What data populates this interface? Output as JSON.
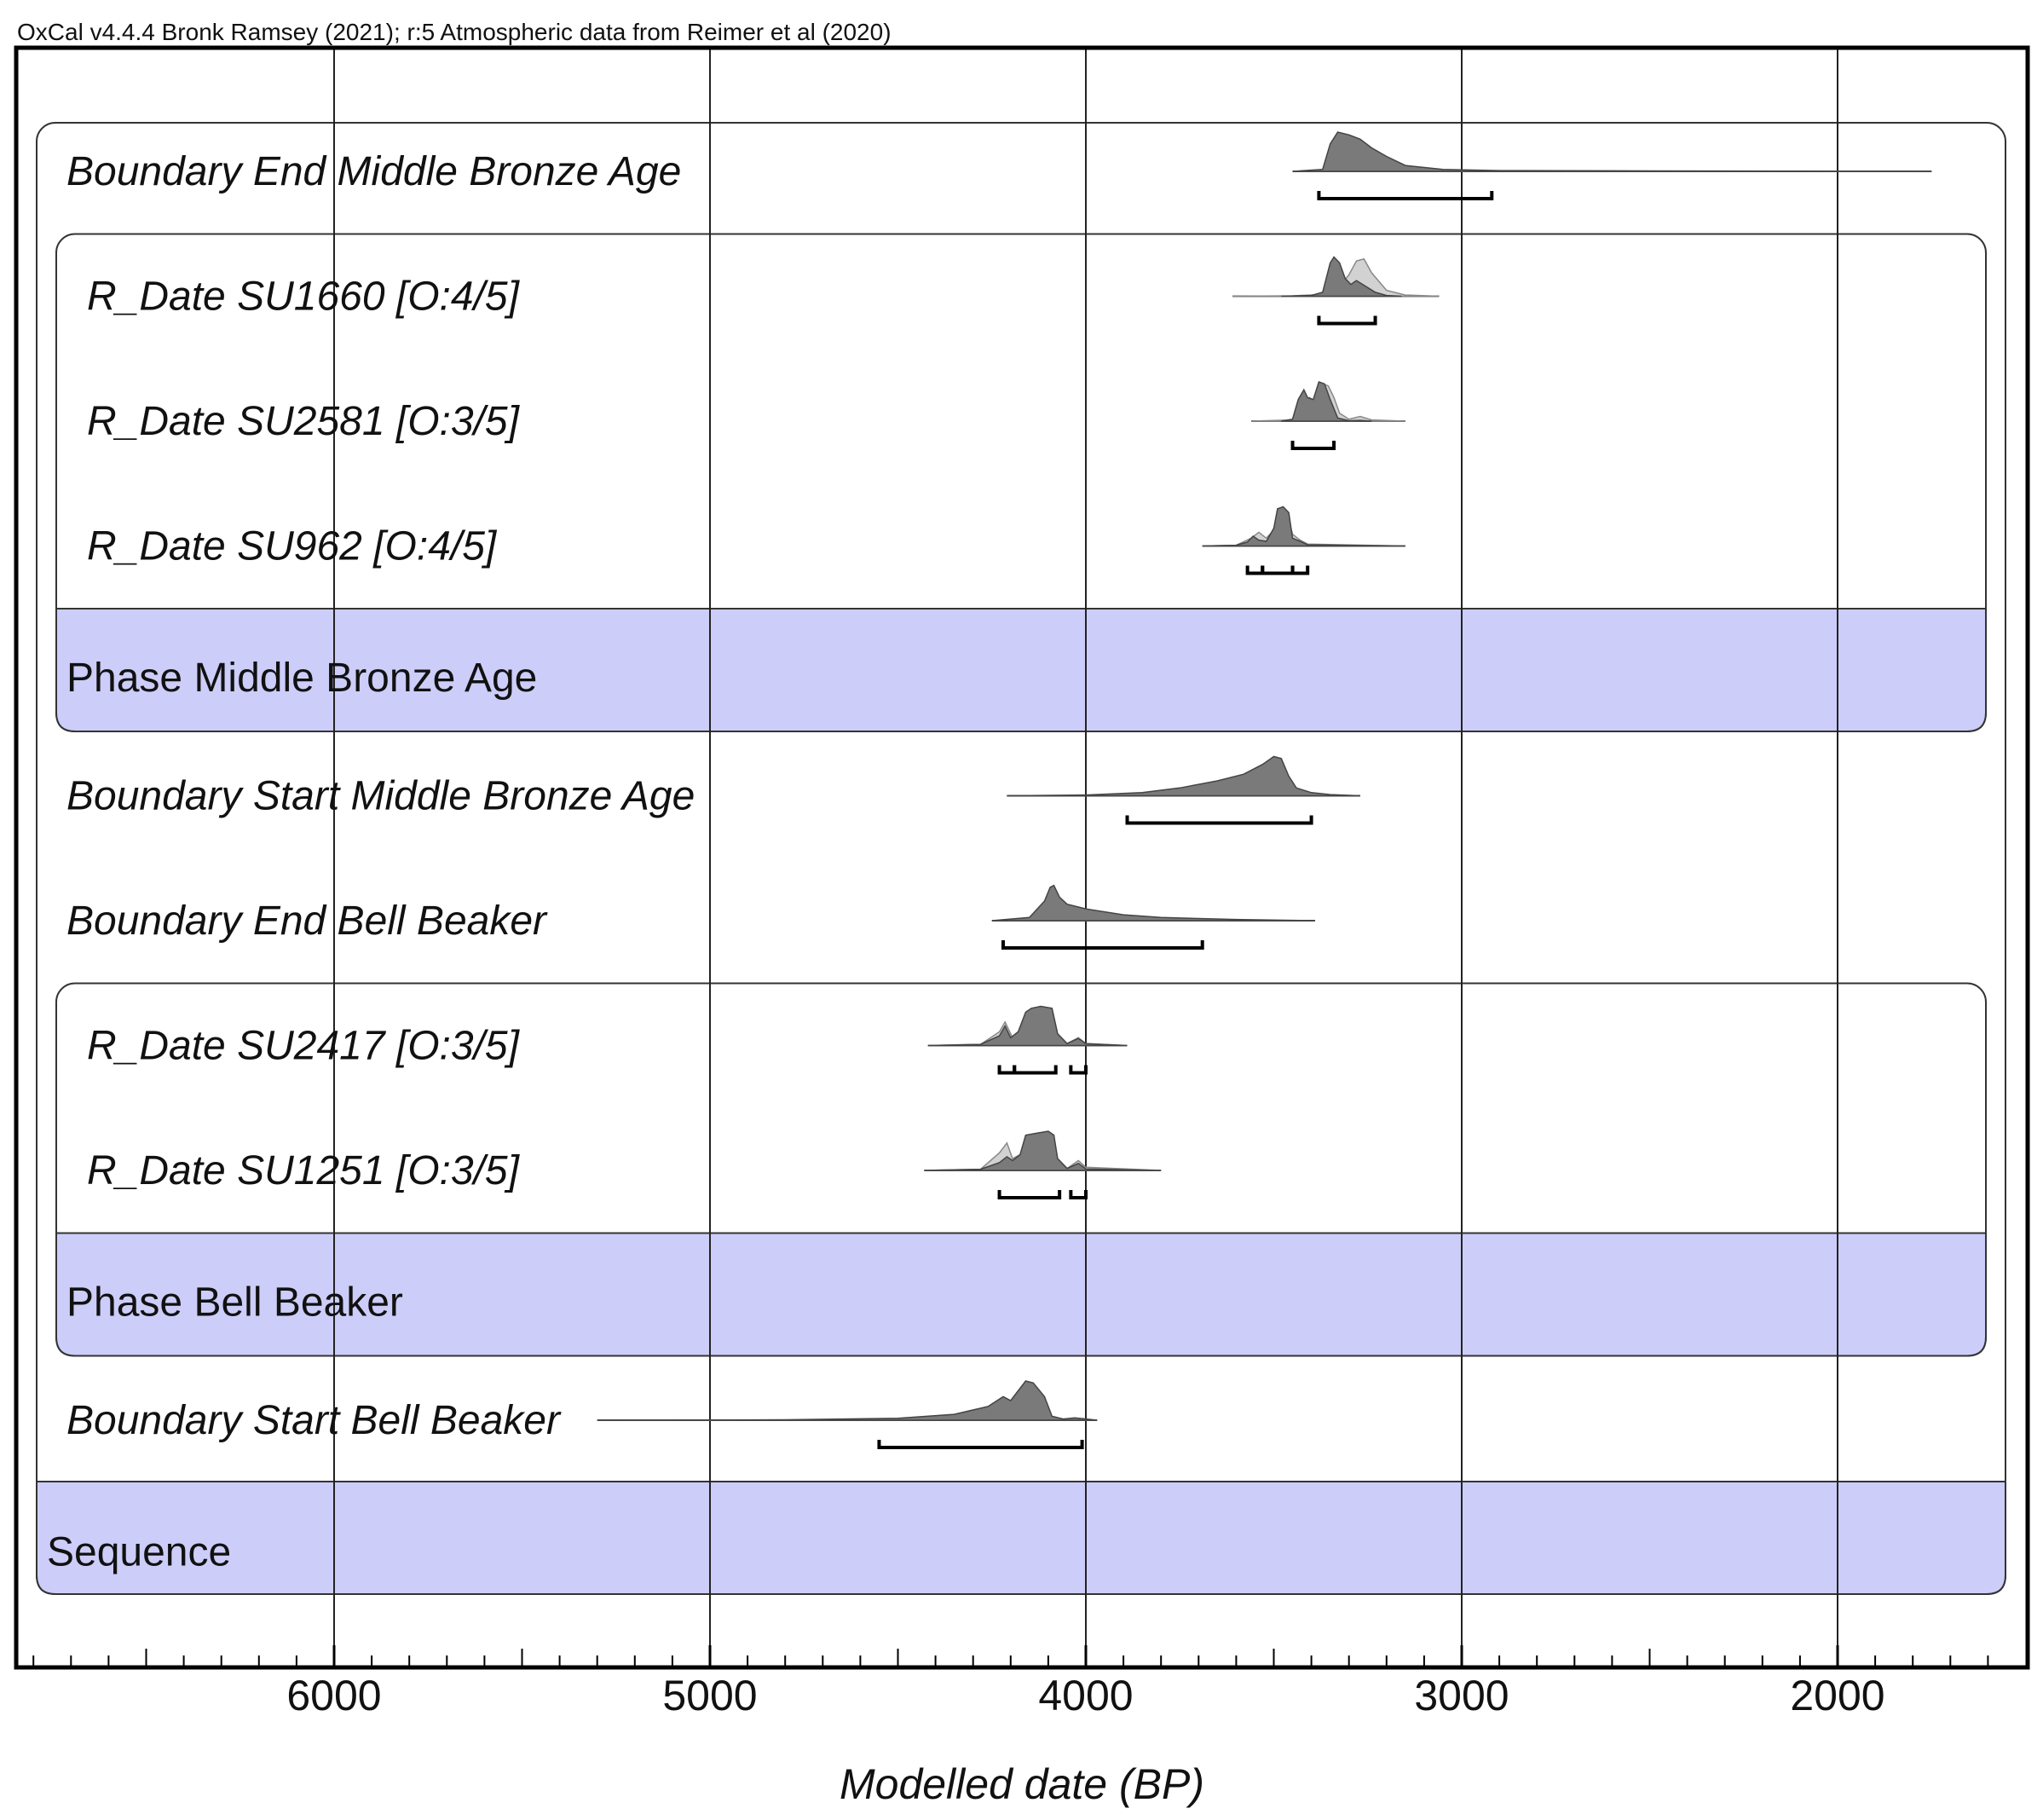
{
  "header": {
    "text": "OxCal v4.4.4 Bronk Ramsey (2021); r:5 Atmospheric data from Reimer et al (2020)"
  },
  "chart_data": {
    "type": "area",
    "xlabel": "Modelled date (BP)",
    "x_reversed": true,
    "xlim": [
      6850,
      1550
    ],
    "ticks": [
      {
        "value": 6000,
        "label": "6000"
      },
      {
        "value": 5000,
        "label": "5000"
      },
      {
        "value": 4000,
        "label": "4000"
      },
      {
        "value": 3000,
        "label": "3000"
      },
      {
        "value": 2000,
        "label": "2000"
      }
    ],
    "grid": true,
    "rows": [
      {
        "label": "Boundary End Middle Bronze Age",
        "kind": "boundary",
        "curve_range": [
          3450,
          1750
        ],
        "posterior": [
          [
            3450,
            0
          ],
          [
            3370,
            0.05
          ],
          [
            3350,
            0.7
          ],
          [
            3330,
            1.0
          ],
          [
            3300,
            0.93
          ],
          [
            3270,
            0.82
          ],
          [
            3240,
            0.6
          ],
          [
            3200,
            0.38
          ],
          [
            3150,
            0.15
          ],
          [
            3050,
            0.05
          ],
          [
            2900,
            0.02
          ],
          [
            2500,
            0.01
          ],
          [
            1750,
            0
          ]
        ],
        "ranges": [
          [
            3380,
            2920
          ]
        ]
      },
      {
        "label": "R_Date SU1660 [O:4/5]",
        "kind": "date",
        "curve_range": [
          3610,
          3060
        ],
        "prior": [
          [
            3610,
            0
          ],
          [
            3450,
            0.01
          ],
          [
            3360,
            0.05
          ],
          [
            3320,
            0.3
          ],
          [
            3300,
            0.55
          ],
          [
            3280,
            0.9
          ],
          [
            3260,
            0.95
          ],
          [
            3240,
            0.6
          ],
          [
            3200,
            0.15
          ],
          [
            3150,
            0.03
          ],
          [
            3060,
            0
          ]
        ],
        "posterior": [
          [
            3480,
            0
          ],
          [
            3400,
            0.02
          ],
          [
            3370,
            0.1
          ],
          [
            3350,
            0.85
          ],
          [
            3340,
            1.0
          ],
          [
            3325,
            0.85
          ],
          [
            3310,
            0.45
          ],
          [
            3295,
            0.3
          ],
          [
            3280,
            0.4
          ],
          [
            3260,
            0.28
          ],
          [
            3230,
            0.1
          ],
          [
            3200,
            0.02
          ],
          [
            3160,
            0
          ]
        ],
        "ranges": [
          [
            3380,
            3230
          ]
        ]
      },
      {
        "label": "R_Date SU2581 [O:3/5]",
        "kind": "date",
        "curve_range": [
          3560,
          3150
        ],
        "prior": [
          [
            3560,
            0
          ],
          [
            3450,
            0.03
          ],
          [
            3420,
            0.4
          ],
          [
            3405,
            0.6
          ],
          [
            3390,
            0.5
          ],
          [
            3370,
            0.95
          ],
          [
            3355,
            0.9
          ],
          [
            3340,
            0.6
          ],
          [
            3325,
            0.2
          ],
          [
            3300,
            0.05
          ],
          [
            3270,
            0.12
          ],
          [
            3240,
            0.03
          ],
          [
            3150,
            0
          ]
        ],
        "posterior": [
          [
            3480,
            0
          ],
          [
            3450,
            0.05
          ],
          [
            3435,
            0.55
          ],
          [
            3420,
            0.8
          ],
          [
            3410,
            0.6
          ],
          [
            3395,
            0.55
          ],
          [
            3380,
            1.0
          ],
          [
            3365,
            0.95
          ],
          [
            3350,
            0.55
          ],
          [
            3330,
            0.08
          ],
          [
            3300,
            0.01
          ],
          [
            3270,
            0.02
          ],
          [
            3240,
            0
          ]
        ],
        "ranges": [
          [
            3450,
            3340
          ]
        ]
      },
      {
        "label": "R_Date SU962 [O:4/5]",
        "kind": "date",
        "curve_range": [
          3690,
          3150
        ],
        "prior": [
          [
            3690,
            0
          ],
          [
            3600,
            0.02
          ],
          [
            3560,
            0.2
          ],
          [
            3540,
            0.35
          ],
          [
            3520,
            0.2
          ],
          [
            3500,
            0.4
          ],
          [
            3480,
            0.9
          ],
          [
            3465,
            0.85
          ],
          [
            3450,
            0.3
          ],
          [
            3430,
            0.15
          ],
          [
            3410,
            0.05
          ],
          [
            3150,
            0
          ]
        ],
        "posterior": [
          [
            3690,
            0
          ],
          [
            3600,
            0.02
          ],
          [
            3570,
            0.1
          ],
          [
            3555,
            0.25
          ],
          [
            3540,
            0.15
          ],
          [
            3520,
            0.12
          ],
          [
            3500,
            0.45
          ],
          [
            3490,
            0.95
          ],
          [
            3475,
            1.0
          ],
          [
            3460,
            0.85
          ],
          [
            3450,
            0.2
          ],
          [
            3430,
            0.12
          ],
          [
            3410,
            0.03
          ],
          [
            3150,
            0
          ]
        ],
        "ranges": [
          [
            3570,
            3530
          ],
          [
            3530,
            3450
          ],
          [
            3450,
            3410
          ]
        ]
      },
      {
        "label": "Phase Middle Bronze Age",
        "kind": "phase"
      },
      {
        "label": "Boundary Start Middle Bronze Age",
        "kind": "boundary",
        "curve_range": [
          4210,
          3270
        ],
        "posterior": [
          [
            4210,
            0
          ],
          [
            4000,
            0.02
          ],
          [
            3850,
            0.08
          ],
          [
            3750,
            0.2
          ],
          [
            3650,
            0.38
          ],
          [
            3580,
            0.55
          ],
          [
            3530,
            0.8
          ],
          [
            3500,
            1.0
          ],
          [
            3480,
            0.95
          ],
          [
            3460,
            0.5
          ],
          [
            3440,
            0.2
          ],
          [
            3400,
            0.08
          ],
          [
            3350,
            0.03
          ],
          [
            3270,
            0
          ]
        ],
        "ranges": [
          [
            3890,
            3400
          ]
        ]
      },
      {
        "label": "Boundary End Bell Beaker",
        "kind": "boundary",
        "curve_range": [
          4250,
          3390
        ],
        "posterior": [
          [
            4250,
            0
          ],
          [
            4150,
            0.08
          ],
          [
            4110,
            0.5
          ],
          [
            4095,
            0.85
          ],
          [
            4085,
            0.9
          ],
          [
            4070,
            0.6
          ],
          [
            4050,
            0.42
          ],
          [
            4000,
            0.3
          ],
          [
            3900,
            0.15
          ],
          [
            3800,
            0.08
          ],
          [
            3600,
            0.03
          ],
          [
            3390,
            0
          ]
        ],
        "ranges": [
          [
            4220,
            3690
          ]
        ]
      },
      {
        "label": "R_Date SU2417 [O:3/5]",
        "kind": "date",
        "curve_range": [
          4420,
          3890
        ],
        "prior": [
          [
            4420,
            0
          ],
          [
            4280,
            0.03
          ],
          [
            4230,
            0.35
          ],
          [
            4215,
            0.6
          ],
          [
            4195,
            0.2
          ],
          [
            4175,
            0.3
          ],
          [
            4160,
            0.65
          ],
          [
            4140,
            0.85
          ],
          [
            4100,
            0.95
          ],
          [
            4080,
            0.3
          ],
          [
            4050,
            0.05
          ],
          [
            4020,
            0.2
          ],
          [
            4000,
            0.05
          ],
          [
            3890,
            0
          ]
        ],
        "posterior": [
          [
            4420,
            0
          ],
          [
            4280,
            0.03
          ],
          [
            4230,
            0.25
          ],
          [
            4215,
            0.5
          ],
          [
            4200,
            0.2
          ],
          [
            4180,
            0.35
          ],
          [
            4160,
            0.85
          ],
          [
            4145,
            0.95
          ],
          [
            4120,
            1.0
          ],
          [
            4090,
            0.95
          ],
          [
            4075,
            0.3
          ],
          [
            4050,
            0.05
          ],
          [
            4020,
            0.18
          ],
          [
            4000,
            0.05
          ],
          [
            3890,
            0
          ]
        ],
        "ranges": [
          [
            4230,
            4190
          ],
          [
            4190,
            4080
          ],
          [
            4040,
            4000
          ]
        ]
      },
      {
        "label": "R_Date SU1251 [O:3/5]",
        "kind": "date",
        "curve_range": [
          4430,
          3800
        ],
        "prior": [
          [
            4430,
            0
          ],
          [
            4280,
            0.03
          ],
          [
            4230,
            0.45
          ],
          [
            4210,
            0.7
          ],
          [
            4195,
            0.3
          ],
          [
            4175,
            0.4
          ],
          [
            4160,
            0.75
          ],
          [
            4130,
            0.9
          ],
          [
            4090,
            0.85
          ],
          [
            4075,
            0.3
          ],
          [
            4050,
            0.05
          ],
          [
            4020,
            0.25
          ],
          [
            4000,
            0.08
          ],
          [
            3800,
            0
          ]
        ],
        "posterior": [
          [
            4430,
            0
          ],
          [
            4280,
            0.03
          ],
          [
            4230,
            0.2
          ],
          [
            4210,
            0.35
          ],
          [
            4195,
            0.25
          ],
          [
            4175,
            0.4
          ],
          [
            4160,
            0.9
          ],
          [
            4130,
            0.95
          ],
          [
            4100,
            1.0
          ],
          [
            4085,
            0.9
          ],
          [
            4075,
            0.3
          ],
          [
            4050,
            0.05
          ],
          [
            4020,
            0.18
          ],
          [
            4000,
            0.04
          ],
          [
            3800,
            0
          ]
        ],
        "ranges": [
          [
            4230,
            4070
          ],
          [
            4040,
            4000
          ]
        ]
      },
      {
        "label": "Phase Bell Beaker",
        "kind": "phase"
      },
      {
        "label": "Boundary Start Bell Beaker",
        "kind": "boundary",
        "curve_range": [
          5300,
          3970
        ],
        "posterior": [
          [
            5300,
            0
          ],
          [
            4800,
            0.01
          ],
          [
            4500,
            0.05
          ],
          [
            4350,
            0.15
          ],
          [
            4260,
            0.35
          ],
          [
            4220,
            0.6
          ],
          [
            4200,
            0.5
          ],
          [
            4180,
            0.75
          ],
          [
            4160,
            1.0
          ],
          [
            4140,
            0.95
          ],
          [
            4110,
            0.6
          ],
          [
            4090,
            0.1
          ],
          [
            4060,
            0.03
          ],
          [
            4030,
            0.06
          ],
          [
            3970,
            0
          ]
        ],
        "ranges": [
          [
            4550,
            4010
          ]
        ]
      },
      {
        "label": "Sequence",
        "kind": "sequence"
      }
    ]
  },
  "colors": {
    "phase_fill": "#cdcdfa",
    "posterior_fill": "#7a7a7a",
    "prior_fill": "#d2d2d2",
    "axis": "#000000"
  }
}
